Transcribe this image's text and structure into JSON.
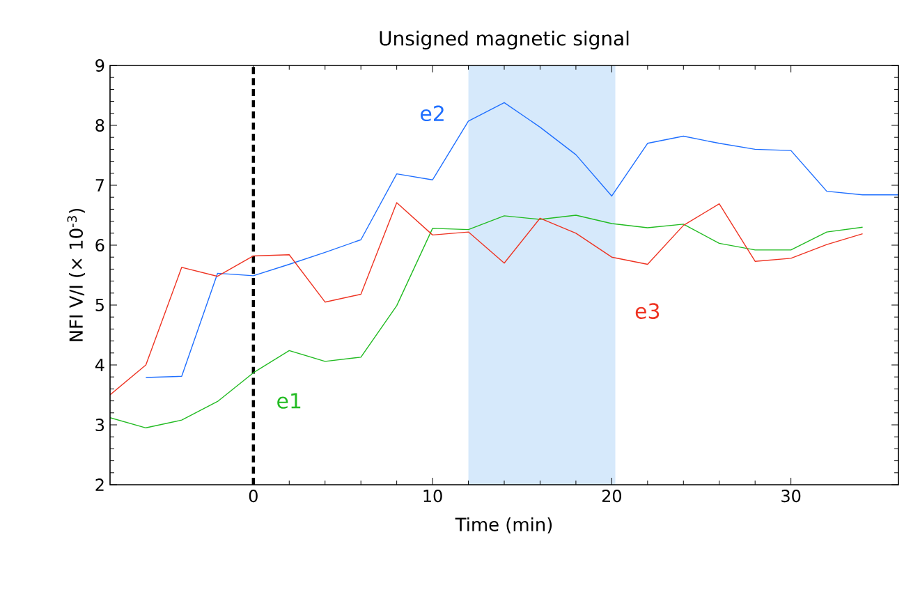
{
  "chart_data": {
    "type": "line",
    "title": "Unsigned magnetic signal",
    "xlabel": "Time (min)",
    "ylabel": "NFI V/I  (× 10$^{-3}$)",
    "x": [
      -8,
      -6,
      -4,
      -2,
      0,
      2,
      4,
      6,
      8,
      10,
      12,
      14,
      16,
      18,
      20,
      22,
      24,
      26,
      28,
      30,
      32,
      34,
      36
    ],
    "series": [
      {
        "name": "e1",
        "color": "#22bb22",
        "values": [
          3.12,
          2.95,
          3.08,
          3.39,
          3.87,
          4.24,
          4.06,
          4.13,
          4.99,
          6.28,
          6.26,
          6.49,
          6.43,
          6.5,
          6.36,
          6.29,
          6.35,
          6.03,
          5.92,
          5.92,
          6.22,
          6.3,
          null
        ]
      },
      {
        "name": "e2",
        "color": "#1f6fff",
        "values": [
          null,
          3.79,
          3.81,
          5.53,
          5.49,
          5.68,
          5.88,
          6.09,
          7.19,
          7.09,
          8.07,
          8.38,
          7.97,
          7.51,
          6.82,
          7.7,
          7.82,
          7.7,
          7.6,
          7.58,
          6.9,
          6.84,
          6.84
        ]
      },
      {
        "name": "e3",
        "color": "#ee3322",
        "values": [
          3.5,
          4.0,
          5.63,
          5.48,
          5.82,
          5.84,
          5.05,
          5.18,
          6.71,
          6.17,
          6.22,
          5.7,
          6.45,
          6.2,
          5.8,
          5.68,
          6.33,
          6.69,
          5.73,
          5.78,
          6.01,
          6.19,
          null
        ]
      }
    ],
    "xlim": [
      -8,
      36
    ],
    "ylim": [
      2,
      9
    ],
    "xticks": [
      0,
      10,
      20,
      30
    ],
    "yticks": [
      2,
      3,
      4,
      5,
      6,
      7,
      8,
      9
    ],
    "ref_lines": [
      {
        "axis": "x",
        "value": 0,
        "color": "#000000",
        "line_style": "dashed"
      }
    ],
    "bands": [
      {
        "axis": "x",
        "from": 12,
        "to": 20.2,
        "color": "#d6e9fb"
      }
    ],
    "grid": false,
    "legend": false,
    "marker": "none",
    "line_style": "solid"
  }
}
